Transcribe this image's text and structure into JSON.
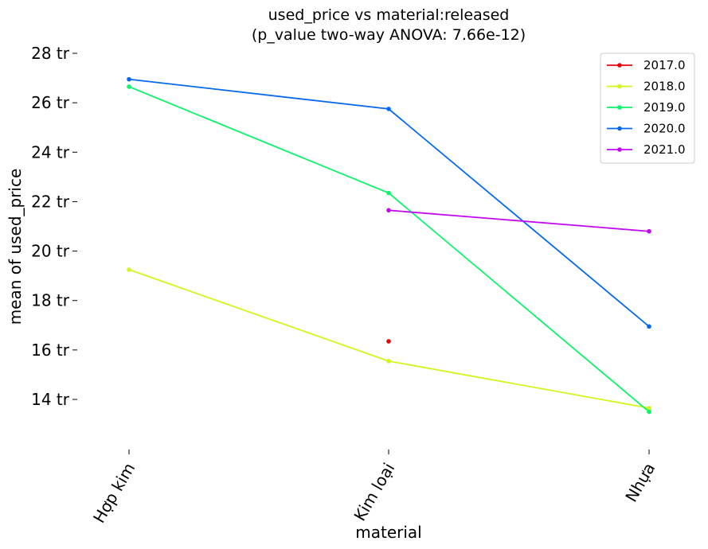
{
  "chart_data": {
    "type": "line",
    "title_line1": "used_price vs material:released",
    "title_line2": "(p_value two-way ANOVA: 7.66e-12)",
    "xlabel": "material",
    "ylabel": "mean of used_price",
    "categories": [
      "Hợp kim",
      "Kim loại",
      "Nhựa"
    ],
    "y_unit_suffix": " tr",
    "ylim": [
      12.2,
      28.2
    ],
    "yticks": [
      14,
      16,
      18,
      20,
      22,
      24,
      26,
      28
    ],
    "grid": false,
    "legend_position": "top-right",
    "series": [
      {
        "name": "2017.0",
        "color": "#e8000b",
        "values": [
          null,
          16.35,
          null
        ]
      },
      {
        "name": "2018.0",
        "color": "#d4f51a",
        "values": [
          19.25,
          15.55,
          13.65
        ]
      },
      {
        "name": "2019.0",
        "color": "#0bf56b",
        "values": [
          26.65,
          22.35,
          13.5
        ]
      },
      {
        "name": "2020.0",
        "color": "#0569f0",
        "values": [
          26.95,
          25.75,
          16.95
        ]
      },
      {
        "name": "2021.0",
        "color": "#c20af0",
        "values": [
          null,
          21.65,
          20.8
        ]
      }
    ]
  }
}
